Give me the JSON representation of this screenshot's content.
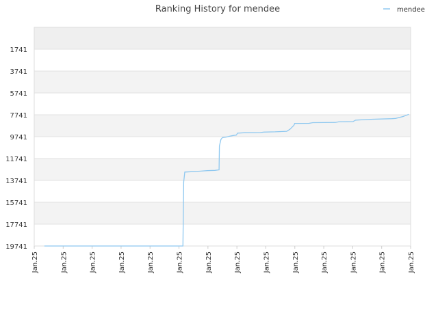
{
  "chart_data": {
    "type": "line",
    "title": "Ranking History for mendee",
    "xlabel": "",
    "ylabel": "",
    "y_inverted": true,
    "ylim": [
      19741,
      -258
    ],
    "y_ticks": [
      1741,
      3741,
      5741,
      7741,
      9741,
      11741,
      13741,
      15741,
      17741,
      19741
    ],
    "x_tick_labels": [
      "Jan.25",
      "Jan.25",
      "Jan.25",
      "Jan.25",
      "Jan.25",
      "Jan.25",
      "Jan.25",
      "Jan.25",
      "Jan.25",
      "Jan.25",
      "Jan.25",
      "Jan.25",
      "Jan.25",
      "Jan.25"
    ],
    "legend": {
      "position": "top-right"
    },
    "grid": true,
    "series": [
      {
        "name": "mendee",
        "color": "#8ec8f0",
        "x": [
          0.027,
          0.395,
          0.397,
          0.4,
          0.42,
          0.44,
          0.46,
          0.48,
          0.491,
          0.492,
          0.496,
          0.5,
          0.51,
          0.52,
          0.53,
          0.537,
          0.54,
          0.56,
          0.6,
          0.61,
          0.64,
          0.671,
          0.68,
          0.69,
          0.692,
          0.73,
          0.74,
          0.8,
          0.81,
          0.847,
          0.854,
          0.88,
          0.9,
          0.95,
          0.96,
          0.98,
          0.995
        ],
        "y": [
          19741,
          19741,
          13900,
          12980,
          12940,
          12900,
          12850,
          12820,
          12780,
          10600,
          10000,
          9830,
          9780,
          9700,
          9630,
          9600,
          9420,
          9380,
          9370,
          9320,
          9300,
          9250,
          9050,
          8700,
          8530,
          8520,
          8460,
          8440,
          8370,
          8360,
          8230,
          8180,
          8150,
          8100,
          8070,
          7900,
          7700
        ]
      }
    ]
  }
}
